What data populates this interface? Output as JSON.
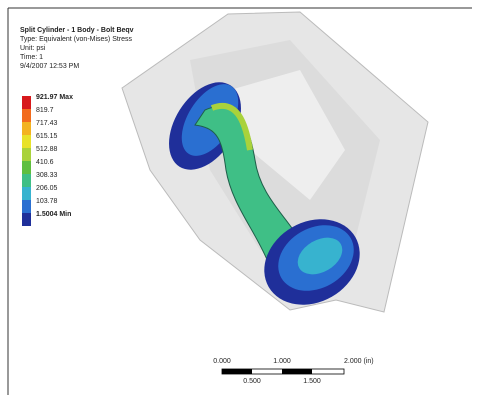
{
  "header": {
    "lines": [
      "Split Cylinder - 1 Body - Bolt Beqv",
      "Type: Equivalent (von-Mises) Stress",
      "Unit: psi",
      "Time: 1",
      "9/4/2007 12:53 PM"
    ]
  },
  "legend": {
    "entries": [
      {
        "label": "921.97 Max",
        "color": "#d7191c"
      },
      {
        "label": "819.7",
        "color": "#f26b1d"
      },
      {
        "label": "717.43",
        "color": "#f3b321"
      },
      {
        "label": "615.15",
        "color": "#e8e22a"
      },
      {
        "label": "512.88",
        "color": "#a9d23b"
      },
      {
        "label": "410.6",
        "color": "#5fbf3f"
      },
      {
        "label": "308.33",
        "color": "#3fbf86"
      },
      {
        "label": "206.05",
        "color": "#37b3cf"
      },
      {
        "label": "103.78",
        "color": "#2a6fd1"
      },
      {
        "label": "1.5004 Min",
        "color": "#1f2f9a"
      }
    ]
  },
  "scale_bar": {
    "top_labels": [
      "0.000",
      "1.000",
      "2.000 (in)"
    ],
    "bottom_labels": [
      "0.500",
      "1.500"
    ]
  }
}
